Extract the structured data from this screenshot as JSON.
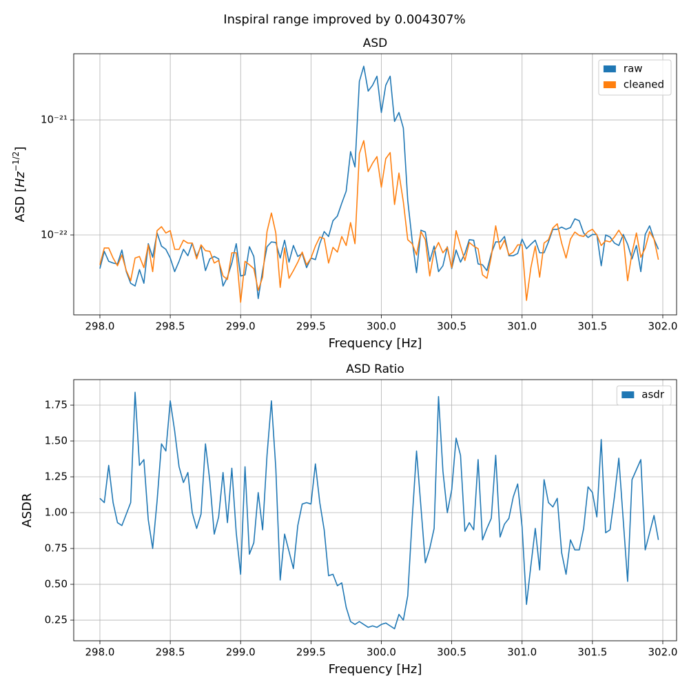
{
  "title": "Inspiral range improved by 0.004307%",
  "chart_data": [
    {
      "type": "line",
      "title": "ASD",
      "xlabel": "Frequency [Hz]",
      "ylabel": [
        "ASD [",
        "Hz",
        "−1/2",
        "]"
      ],
      "yscale": "log",
      "grid": true,
      "legend": "upper right",
      "xlim": [
        297.814,
        302.098
      ],
      "ylim": [
        2.02e-23,
        3.76e-21
      ],
      "xticks": [
        {
          "value": 298,
          "label": "298.0"
        },
        298.5,
        {
          "value": 299,
          "label": "299.0"
        },
        299.5,
        {
          "value": 300,
          "label": "300.0"
        },
        300.5,
        {
          "value": 301,
          "label": "301.0"
        },
        301.5,
        {
          "value": 302,
          "label": "302.0"
        }
      ],
      "yticks": [
        {
          "value": 1e-22,
          "label": "10⁻²²"
        },
        {
          "value": 1e-21,
          "label": "10⁻²¹"
        }
      ],
      "x": [
        298,
        298.03125,
        298.0625,
        298.09375,
        298.125,
        298.15625,
        298.1875,
        298.21875,
        298.25,
        298.28125,
        298.3125,
        298.34375,
        298.375,
        298.40625,
        298.4375,
        298.46875,
        298.5,
        298.53125,
        298.5625,
        298.59375,
        298.625,
        298.65625,
        298.6875,
        298.71875,
        298.75,
        298.78125,
        298.8125,
        298.84375,
        298.875,
        298.90625,
        298.9375,
        298.96875,
        299,
        299.03125,
        299.0625,
        299.09375,
        299.125,
        299.15625,
        299.1875,
        299.21875,
        299.25,
        299.28125,
        299.3125,
        299.34375,
        299.375,
        299.40625,
        299.4375,
        299.46875,
        299.5,
        299.53125,
        299.5625,
        299.59375,
        299.625,
        299.65625,
        299.6875,
        299.71875,
        299.75,
        299.78125,
        299.8125,
        299.84375,
        299.875,
        299.90625,
        299.9375,
        299.96875,
        300,
        300.03125,
        300.0625,
        300.09375,
        300.125,
        300.15625,
        300.1875,
        300.21875,
        300.25,
        300.28125,
        300.3125,
        300.34375,
        300.375,
        300.40625,
        300.4375,
        300.46875,
        300.5,
        300.53125,
        300.5625,
        300.59375,
        300.625,
        300.65625,
        300.6875,
        300.71875,
        300.75,
        300.78125,
        300.8125,
        300.84375,
        300.875,
        300.90625,
        300.9375,
        300.96875,
        301,
        301.03125,
        301.0625,
        301.09375,
        301.125,
        301.15625,
        301.1875,
        301.21875,
        301.25,
        301.28125,
        301.3125,
        301.34375,
        301.375,
        301.40625,
        301.4375,
        301.46875,
        301.5,
        301.53125,
        301.5625,
        301.59375,
        301.625,
        301.65625,
        301.6875,
        301.71875,
        301.75,
        301.78125,
        301.8125,
        301.84375,
        301.875,
        301.90625,
        301.9375,
        301.96875
      ],
      "series": [
        {
          "name": "raw",
          "color": "#1f77b4",
          "values": [
            5.1e-23,
            7.2e-23,
            5.9e-23,
            5.7e-23,
            5.6e-23,
            7.4e-23,
            4.8e-23,
            3.8e-23,
            3.6e-23,
            5e-23,
            3.8e-23,
            8.4e-23,
            6.4e-23,
            1.04e-22,
            8e-23,
            7.5e-23,
            6.3e-23,
            4.8e-23,
            5.9e-23,
            7.5e-23,
            6.6e-23,
            8.5e-23,
            6.5e-23,
            8e-23,
            4.9e-23,
            6.2e-23,
            6.5e-23,
            6.2e-23,
            3.6e-23,
            4.3e-23,
            5.7e-23,
            8.4e-23,
            4.4e-23,
            4.5e-23,
            7.9e-23,
            6.5e-23,
            2.8e-23,
            4.9e-23,
            7.9e-23,
            8.7e-23,
            8.6e-23,
            6.3e-23,
            9e-23,
            5.8e-23,
            8.1e-23,
            6.5e-23,
            6.9e-23,
            5.2e-23,
            6.3e-23,
            6.1e-23,
            8.4e-23,
            1.07e-22,
            9.7e-23,
            1.33e-22,
            1.46e-22,
            1.89e-22,
            2.4e-22,
            5.3e-22,
            3.9e-22,
            2.16e-21,
            2.93e-21,
            1.78e-21,
            2e-21,
            2.4e-21,
            1.16e-21,
            2e-21,
            2.4e-21,
            9.7e-22,
            1.16e-21,
            8.5e-22,
            2e-22,
            9e-23,
            4.7e-23,
            1.1e-22,
            1.06e-22,
            5.9e-23,
            8e-23,
            4.8e-23,
            5.4e-23,
            7.9e-23,
            5.1e-23,
            7.4e-23,
            5.8e-23,
            6.9e-23,
            9.1e-23,
            9e-23,
            5.6e-23,
            5.5e-23,
            4.9e-23,
            6.9e-23,
            8.7e-23,
            8.7e-23,
            9.7e-23,
            6.6e-23,
            6.6e-23,
            6.9e-23,
            9.2e-23,
            7.6e-23,
            8.3e-23,
            9e-23,
            7e-23,
            7e-23,
            8.7e-23,
            1.12e-22,
            1.12e-22,
            1.17e-22,
            1.12e-22,
            1.16e-22,
            1.38e-22,
            1.33e-22,
            1.04e-22,
            9.5e-23,
            1.01e-22,
            1.01e-22,
            5.4e-23,
            1e-22,
            9.6e-23,
            8.5e-23,
            8.1e-23,
            1.01e-22,
            8.3e-23,
            6.2e-23,
            8.1e-23,
            4.8e-23,
            1.01e-22,
            1.2e-22,
            9.2e-23,
            7.5e-23
          ]
        },
        {
          "name": "cleaned",
          "color": "#ff7f0e",
          "values": [
            5.5e-23,
            7.7e-23,
            7.7e-23,
            6.3e-23,
            5.4e-23,
            6.7e-23,
            4.9e-23,
            4e-23,
            6.3e-23,
            6.5e-23,
            5.2e-23,
            8.2e-23,
            4.8e-23,
            1.09e-22,
            1.18e-22,
            1.04e-22,
            1.09e-22,
            7.5e-23,
            7.5e-23,
            9e-23,
            8.5e-23,
            8.5e-23,
            6.2e-23,
            8.2e-23,
            7.3e-23,
            7.2e-23,
            5.7e-23,
            6e-23,
            4.4e-23,
            4.1e-23,
            7e-23,
            7e-23,
            2.6e-23,
            5.9e-23,
            5.5e-23,
            5.1e-23,
            3.3e-23,
            4.3e-23,
            1.07e-22,
            1.55e-22,
            1.04e-22,
            3.5e-23,
            7.7e-23,
            4.2e-23,
            4.9e-23,
            5.8e-23,
            7.1e-23,
            5.5e-23,
            6.3e-23,
            8e-23,
            9.6e-23,
            9.3e-23,
            5.7e-23,
            7.8e-23,
            7.1e-23,
            9.7e-23,
            8.1e-23,
            1.28e-22,
            8.4e-23,
            5.1e-22,
            6.6e-22,
            3.55e-22,
            4.2e-22,
            4.8e-22,
            2.6e-22,
            4.6e-22,
            5.2e-22,
            1.84e-22,
            3.45e-22,
            1.94e-22,
            9.1e-23,
            8.4e-23,
            6.7e-23,
            1.07e-22,
            9.1e-23,
            4.4e-23,
            7.2e-23,
            8.6e-23,
            7e-23,
            7.8e-23,
            5.2e-23,
            1.09e-22,
            8e-23,
            6e-23,
            8.6e-23,
            8e-23,
            7.6e-23,
            4.5e-23,
            4.2e-23,
            6.5e-23,
            1.2e-22,
            7.5e-23,
            9e-23,
            6.7e-23,
            7.1e-23,
            8.2e-23,
            8.2e-23,
            2.7e-23,
            5.2e-23,
            8e-23,
            4.3e-23,
            8.5e-23,
            9.1e-23,
            1.15e-22,
            1.25e-22,
            8.5e-23,
            6.3e-23,
            9.2e-23,
            1.06e-22,
            9.9e-23,
            9.7e-23,
            1.07e-22,
            1.12e-22,
            1e-22,
            8.1e-23,
            8.9e-23,
            8.7e-23,
            9.6e-23,
            1.1e-22,
            9.5e-23,
            4e-23,
            7e-23,
            1.04e-22,
            6.4e-23,
            7.7e-23,
            1.07e-22,
            9.2e-23,
            6.1e-23
          ]
        }
      ]
    },
    {
      "type": "line",
      "title": "ASD Ratio",
      "xlabel": "Frequency [Hz]",
      "ylabel": "ASDR",
      "grid": true,
      "legend": "upper right",
      "xlim": [
        297.814,
        302.098
      ],
      "ylim": [
        0.106,
        1.928
      ],
      "xticks": [
        {
          "value": 298,
          "label": "298.0"
        },
        298.5,
        {
          "value": 299,
          "label": "299.0"
        },
        299.5,
        {
          "value": 300,
          "label": "300.0"
        },
        300.5,
        {
          "value": 301,
          "label": "301.0"
        },
        301.5,
        {
          "value": 302,
          "label": "302.0"
        }
      ],
      "yticks": [
        0.25,
        {
          "value": 0.5,
          "label": "0.50"
        },
        0.75,
        {
          "value": 1,
          "label": "1.00"
        },
        1.25,
        {
          "value": 1.5,
          "label": "1.50"
        },
        1.75
      ],
      "x": [
        298,
        298.03125,
        298.0625,
        298.09375,
        298.125,
        298.15625,
        298.1875,
        298.21875,
        298.25,
        298.28125,
        298.3125,
        298.34375,
        298.375,
        298.40625,
        298.4375,
        298.46875,
        298.5,
        298.53125,
        298.5625,
        298.59375,
        298.625,
        298.65625,
        298.6875,
        298.71875,
        298.75,
        298.78125,
        298.8125,
        298.84375,
        298.875,
        298.90625,
        298.9375,
        298.96875,
        299,
        299.03125,
        299.0625,
        299.09375,
        299.125,
        299.15625,
        299.1875,
        299.21875,
        299.25,
        299.28125,
        299.3125,
        299.34375,
        299.375,
        299.40625,
        299.4375,
        299.46875,
        299.5,
        299.53125,
        299.5625,
        299.59375,
        299.625,
        299.65625,
        299.6875,
        299.71875,
        299.75,
        299.78125,
        299.8125,
        299.84375,
        299.875,
        299.90625,
        299.9375,
        299.96875,
        300,
        300.03125,
        300.0625,
        300.09375,
        300.125,
        300.15625,
        300.1875,
        300.21875,
        300.25,
        300.28125,
        300.3125,
        300.34375,
        300.375,
        300.40625,
        300.4375,
        300.46875,
        300.5,
        300.53125,
        300.5625,
        300.59375,
        300.625,
        300.65625,
        300.6875,
        300.71875,
        300.75,
        300.78125,
        300.8125,
        300.84375,
        300.875,
        300.90625,
        300.9375,
        300.96875,
        301,
        301.03125,
        301.0625,
        301.09375,
        301.125,
        301.15625,
        301.1875,
        301.21875,
        301.25,
        301.28125,
        301.3125,
        301.34375,
        301.375,
        301.40625,
        301.4375,
        301.46875,
        301.5,
        301.53125,
        301.5625,
        301.59375,
        301.625,
        301.65625,
        301.6875,
        301.71875,
        301.75,
        301.78125,
        301.8125,
        301.84375,
        301.875,
        301.90625,
        301.9375,
        301.96875
      ],
      "series": [
        {
          "name": "asdr",
          "color": "#1f77b4",
          "values": [
            1.1,
            1.07,
            1.33,
            1.07,
            0.93,
            0.91,
            0.99,
            1.07,
            1.84,
            1.33,
            1.37,
            0.95,
            0.75,
            1.08,
            1.48,
            1.43,
            1.78,
            1.57,
            1.32,
            1.21,
            1.28,
            1.0,
            0.89,
            0.99,
            1.48,
            1.22,
            0.85,
            0.97,
            1.28,
            0.93,
            1.31,
            0.86,
            0.57,
            1.32,
            0.71,
            0.79,
            1.14,
            0.88,
            1.4,
            1.78,
            1.31,
            0.53,
            0.85,
            0.73,
            0.61,
            0.91,
            1.06,
            1.07,
            1.06,
            1.34,
            1.07,
            0.88,
            0.56,
            0.57,
            0.49,
            0.51,
            0.34,
            0.24,
            0.22,
            0.24,
            0.22,
            0.2,
            0.21,
            0.2,
            0.22,
            0.23,
            0.21,
            0.19,
            0.29,
            0.25,
            0.42,
            0.95,
            1.43,
            1.04,
            0.65,
            0.75,
            0.89,
            1.81,
            1.29,
            1.0,
            1.16,
            1.52,
            1.4,
            0.87,
            0.93,
            0.88,
            1.37,
            0.81,
            0.89,
            0.96,
            1.4,
            0.83,
            0.92,
            0.96,
            1.11,
            1.2,
            0.9,
            0.36,
            0.63,
            0.89,
            0.6,
            1.23,
            1.07,
            1.04,
            1.1,
            0.72,
            0.57,
            0.81,
            0.74,
            0.74,
            0.89,
            1.18,
            1.14,
            0.97,
            1.51,
            0.86,
            0.88,
            1.11,
            1.38,
            0.95,
            0.52,
            1.23,
            1.3,
            1.37,
            0.74,
            0.86,
            0.98,
            0.81
          ]
        }
      ]
    }
  ]
}
